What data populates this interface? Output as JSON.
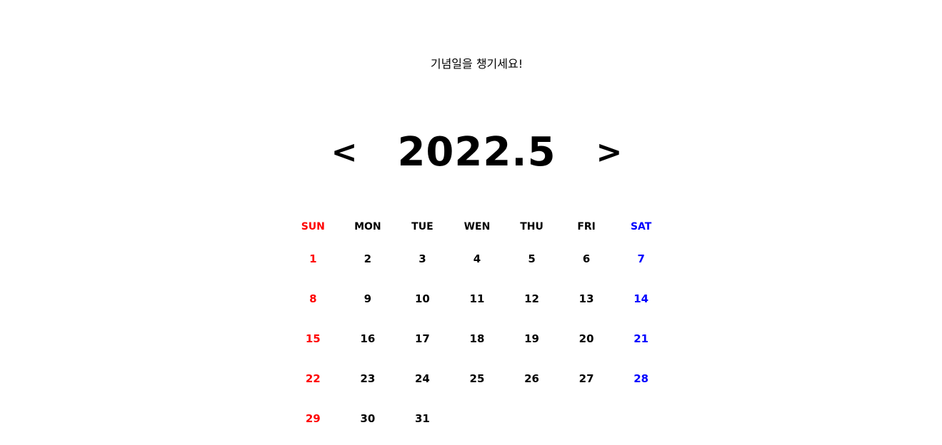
{
  "subtitle": "기념일을 챙기세요!",
  "nav": {
    "prev_label": "<",
    "next_label": ">",
    "month_label": "2022.5"
  },
  "colors": {
    "sunday": "#ff0000",
    "saturday": "#0000ff",
    "weekday": "#000000"
  },
  "weekdays": [
    "SUN",
    "MON",
    "TUE",
    "WEN",
    "THU",
    "FRI",
    "SAT"
  ],
  "weeks": [
    [
      "1",
      "2",
      "3",
      "4",
      "5",
      "6",
      "7"
    ],
    [
      "8",
      "9",
      "10",
      "11",
      "12",
      "13",
      "14"
    ],
    [
      "15",
      "16",
      "17",
      "18",
      "19",
      "20",
      "21"
    ],
    [
      "22",
      "23",
      "24",
      "25",
      "26",
      "27",
      "28"
    ],
    [
      "29",
      "30",
      "31",
      "",
      "",
      "",
      ""
    ]
  ]
}
